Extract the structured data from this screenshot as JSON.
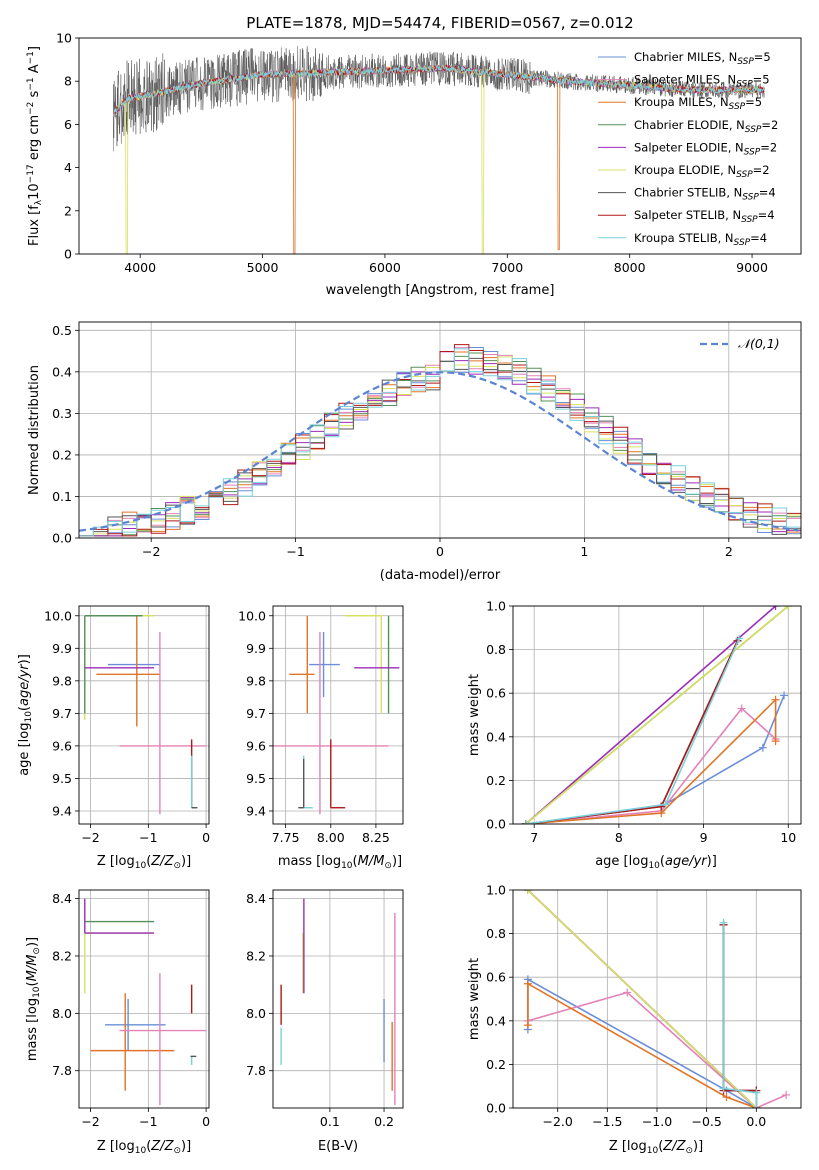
{
  "figure": {
    "title": "PLATE=1878, MJD=54474, FIBERID=0567, z=0.012"
  },
  "series_styles": [
    {
      "name": "Chabrier MILES, N<sub>SSP</sub>=5",
      "plain": "Chabrier MILES, N_SSP=5",
      "color": "#6a8fd8"
    },
    {
      "name": "Salpeter MILES, N_SSP=5",
      "color": "#e482b8"
    },
    {
      "name": "Kroupa MILES, N_SSP=5",
      "color": "#e07428"
    },
    {
      "name": "Chabrier ELODIE, N_SSP=2",
      "color": "#55905a"
    },
    {
      "name": "Salpeter ELODIE, N_SSP=2",
      "color": "#9b2db8"
    },
    {
      "name": "Kroupa ELODIE, N_SSP=2",
      "color": "#d8e060"
    },
    {
      "name": "Chabrier STELIB, N_SSP=4",
      "color": "#555555"
    },
    {
      "name": "Salpeter STELIB, N_SSP=4",
      "color": "#b01818"
    },
    {
      "name": "Kroupa STELIB, N_SSP=4",
      "color": "#78d0dc"
    }
  ],
  "chart_data": [
    {
      "id": "spectrum",
      "type": "line",
      "title": "PLATE=1878, MJD=54474, FIBERID=0567, z=0.012",
      "xlabel": "wavelength [Angstrom, rest frame]",
      "ylabel": "Flux [f_λ 10^-17 erg cm^-2 s^-1 A^-1]",
      "xlim": [
        3500,
        9400
      ],
      "ylim": [
        0,
        10
      ],
      "xticks": [
        4000,
        5000,
        6000,
        7000,
        8000,
        9000
      ],
      "yticks": [
        0,
        2,
        4,
        6,
        8,
        10
      ],
      "legend": "top-right",
      "grid": false,
      "data_envelope": {
        "x_range": [
          3780,
          9100
        ],
        "approx_level": [
          [
            3780,
            6.5
          ],
          [
            3900,
            7.2
          ],
          [
            4100,
            7.4
          ],
          [
            4500,
            7.9
          ],
          [
            5000,
            8.3
          ],
          [
            5500,
            8.4
          ],
          [
            6000,
            8.5
          ],
          [
            6500,
            8.6
          ],
          [
            7000,
            8.3
          ],
          [
            7500,
            8.0
          ],
          [
            8000,
            7.8
          ],
          [
            8500,
            7.6
          ],
          [
            9100,
            7.6
          ]
        ],
        "dips": [
          [
            3890,
            0.0
          ],
          [
            5260,
            0.0
          ],
          [
            6800,
            0.0
          ],
          [
            7420,
            0.2
          ]
        ]
      }
    },
    {
      "id": "residuals",
      "type": "histogram",
      "xlabel": "(data-model)/error",
      "ylabel": "Normed distribution",
      "xlim": [
        -2.5,
        2.5
      ],
      "ylim": [
        0,
        0.52
      ],
      "xticks": [
        -2,
        -1,
        0,
        1,
        2
      ],
      "yticks": [
        0.0,
        0.1,
        0.2,
        0.3,
        0.4,
        0.5
      ],
      "grid": true,
      "legend": "top-right",
      "reference_curve": {
        "label": "𝒩(0,1)",
        "mean": 0,
        "sigma": 1,
        "color": "#5b84d2"
      },
      "bin_edges_start": -2.5,
      "bin_width": 0.1,
      "bins": 50
    },
    {
      "id": "age_vs_Z",
      "type": "errorbar",
      "xlabel": "Z [log10(Z/Z⊙)]",
      "ylabel": "age [log10(age/yr)]",
      "xlim": [
        -2.2,
        0.05
      ],
      "ylim": [
        9.36,
        10.03
      ],
      "xticks": [
        -2,
        -1,
        0
      ],
      "yticks": [
        9.4,
        9.5,
        9.6,
        9.7,
        9.8,
        9.9,
        10.0
      ],
      "grid": true,
      "points": [
        {
          "series": 0,
          "x": -1.1,
          "xerr": [
            0.6,
            0.3
          ],
          "y": 9.85,
          "yerr": [
            0.0,
            0.0
          ]
        },
        {
          "series": 2,
          "x": -1.2,
          "xerr": [
            0.7,
            0.4
          ],
          "y": 9.82,
          "yerr": [
            0.16,
            0.18
          ]
        },
        {
          "series": 1,
          "x": -0.8,
          "xerr": [
            0.7,
            0.8
          ],
          "y": 9.6,
          "yerr": [
            0.21,
            0.35
          ]
        },
        {
          "series": 5,
          "x": -2.1,
          "xerr": [
            0.0,
            1.2
          ],
          "y": 10.0,
          "yerr": [
            0.32,
            0.0
          ]
        },
        {
          "series": 3,
          "x": -2.1,
          "xerr": [
            0.0,
            1.0
          ],
          "y": 10.0,
          "yerr": [
            0.3,
            0.0
          ]
        },
        {
          "series": 4,
          "x": -2.1,
          "xerr": [
            0.0,
            1.2
          ],
          "y": 9.84,
          "yerr": [
            0.0,
            0.0
          ]
        },
        {
          "series": 7,
          "x": -0.25,
          "xerr": [
            0.0,
            0.0
          ],
          "y": 9.41,
          "yerr": [
            0.0,
            0.21
          ]
        },
        {
          "series": 8,
          "x": -0.25,
          "xerr": [
            0.0,
            0.05
          ],
          "y": 9.41,
          "yerr": [
            0.0,
            0.16
          ]
        },
        {
          "series": 6,
          "x": -0.2,
          "xerr": [
            0.05,
            0.05
          ],
          "y": 9.41,
          "yerr": [
            0.0,
            0.0
          ]
        }
      ]
    },
    {
      "id": "age_vs_mass",
      "type": "errorbar",
      "xlabel": "mass [log10(M/M⊙)]",
      "ylabel": "",
      "xlim": [
        7.68,
        8.4
      ],
      "ylim": [
        9.36,
        10.03
      ],
      "xticks": [
        7.75,
        8.0,
        8.25
      ],
      "yticks": [
        9.4,
        9.5,
        9.6,
        9.7,
        9.8,
        9.9,
        10.0
      ],
      "grid": true,
      "points": [
        {
          "series": 0,
          "x": 7.96,
          "xerr": [
            0.08,
            0.09
          ],
          "y": 9.85,
          "yerr": [
            0.1,
            0.1
          ]
        },
        {
          "series": 2,
          "x": 7.87,
          "xerr": [
            0.1,
            0.04
          ],
          "y": 9.82,
          "yerr": [
            0.12,
            0.18
          ]
        },
        {
          "series": 1,
          "x": 7.94,
          "xerr": [
            0.34,
            0.38
          ],
          "y": 9.6,
          "yerr": [
            0.21,
            0.35
          ]
        },
        {
          "series": 5,
          "x": 8.28,
          "xerr": [
            0.2,
            0.0
          ],
          "y": 10.0,
          "yerr": [
            0.3,
            0.0
          ]
        },
        {
          "series": 3,
          "x": 8.32,
          "xerr": [
            0.0,
            0.0
          ],
          "y": 10.0,
          "yerr": [
            0.3,
            0.0
          ]
        },
        {
          "series": 4,
          "x": 8.28,
          "xerr": [
            0.15,
            0.1
          ],
          "y": 9.84,
          "yerr": [
            0.0,
            0.0
          ]
        },
        {
          "series": 7,
          "x": 8.0,
          "xerr": [
            0.0,
            0.08
          ],
          "y": 9.41,
          "yerr": [
            0.0,
            0.21
          ]
        },
        {
          "series": 8,
          "x": 7.85,
          "xerr": [
            0.02,
            0.05
          ],
          "y": 9.41,
          "yerr": [
            0.0,
            0.16
          ]
        },
        {
          "series": 6,
          "x": 7.85,
          "xerr": [
            0.03,
            0.0
          ],
          "y": 9.41,
          "yerr": [
            0.0,
            0.15
          ]
        }
      ]
    },
    {
      "id": "mass_weight_vs_age",
      "type": "line",
      "xlabel": "age [log10(age/yr)]",
      "ylabel": "mass weight",
      "xlim": [
        6.75,
        10.15
      ],
      "ylim": [
        0,
        1
      ],
      "xticks": [
        7,
        8,
        9,
        10
      ],
      "yticks": [
        0.0,
        0.2,
        0.4,
        0.6,
        0.8,
        1.0
      ],
      "grid": true,
      "series": [
        {
          "series": 0,
          "x": [
            6.9,
            8.5,
            9.7,
            9.95
          ],
          "y": [
            0.0,
            0.08,
            0.35,
            0.59
          ]
        },
        {
          "series": 1,
          "x": [
            6.9,
            8.5,
            9.45,
            9.85
          ],
          "y": [
            0.0,
            0.06,
            0.53,
            0.39
          ]
        },
        {
          "series": 2,
          "x": [
            6.9,
            8.5,
            9.85,
            9.85
          ],
          "y": [
            0.0,
            0.05,
            0.57,
            0.38
          ]
        },
        {
          "series": 3,
          "x": [
            6.9,
            10.0
          ],
          "y": [
            0.0,
            1.0
          ]
        },
        {
          "series": 4,
          "x": [
            6.9,
            9.85
          ],
          "y": [
            0.0,
            1.0
          ]
        },
        {
          "series": 5,
          "x": [
            6.9,
            10.0
          ],
          "y": [
            0.0,
            1.0
          ]
        },
        {
          "series": 6,
          "x": [
            6.9,
            8.5,
            9.4
          ],
          "y": [
            0.0,
            0.08,
            0.84
          ]
        },
        {
          "series": 7,
          "x": [
            6.9,
            8.5,
            9.4
          ],
          "y": [
            0.0,
            0.08,
            0.84
          ]
        },
        {
          "series": 8,
          "x": [
            6.9,
            8.55,
            9.42
          ],
          "y": [
            0.0,
            0.09,
            0.85
          ]
        }
      ]
    },
    {
      "id": "mass_vs_Z",
      "type": "errorbar",
      "xlabel": "Z [log10(Z/Z⊙)]",
      "ylabel": "mass [log10(M/M⊙)]",
      "xlim": [
        -2.2,
        0.05
      ],
      "ylim": [
        7.67,
        8.43
      ],
      "xticks": [
        -2,
        -1,
        0
      ],
      "yticks": [
        7.8,
        8.0,
        8.2,
        8.4
      ],
      "grid": true,
      "points": [
        {
          "series": 0,
          "x": -1.35,
          "xerr": [
            0.4,
            0.65
          ],
          "y": 7.96,
          "yerr": [
            0.09,
            0.09
          ]
        },
        {
          "series": 2,
          "x": -1.4,
          "xerr": [
            0.6,
            0.85
          ],
          "y": 7.87,
          "yerr": [
            0.14,
            0.2
          ]
        },
        {
          "series": 1,
          "x": -0.8,
          "xerr": [
            0.7,
            0.8
          ],
          "y": 7.94,
          "yerr": [
            0.26,
            0.2
          ]
        },
        {
          "series": 5,
          "x": -2.1,
          "xerr": [
            0.0,
            1.2
          ],
          "y": 8.28,
          "yerr": [
            0.21,
            0.0
          ]
        },
        {
          "series": 3,
          "x": -2.1,
          "xerr": [
            0.0,
            1.2
          ],
          "y": 8.32,
          "yerr": [
            0.0,
            0.0
          ]
        },
        {
          "series": 4,
          "x": -2.1,
          "xerr": [
            0.0,
            1.2
          ],
          "y": 8.28,
          "yerr": [
            0.0,
            0.12
          ]
        },
        {
          "series": 7,
          "x": -0.25,
          "xerr": [
            0.0,
            0.0
          ],
          "y": 8.0,
          "yerr": [
            0.0,
            0.1
          ]
        },
        {
          "series": 8,
          "x": -0.25,
          "xerr": [
            0.0,
            0.0
          ],
          "y": 7.85,
          "yerr": [
            0.03,
            0.0
          ]
        },
        {
          "series": 6,
          "x": -0.22,
          "xerr": [
            0.05,
            0.05
          ],
          "y": 7.85,
          "yerr": [
            0.0,
            0.0
          ]
        }
      ]
    },
    {
      "id": "mass_vs_EBV",
      "type": "errorbar",
      "xlabel": "E(B-V)",
      "ylabel": "",
      "xlim": [
        -0.005,
        0.235
      ],
      "ylim": [
        7.67,
        8.43
      ],
      "xticks": [
        0.1,
        0.2
      ],
      "yticks": [
        7.8,
        8.0,
        8.2,
        8.4
      ],
      "grid": true,
      "points": [
        {
          "series": 0,
          "x": 0.2,
          "xerr": [
            0,
            0
          ],
          "y": 7.96,
          "yerr": [
            0.13,
            0.09
          ]
        },
        {
          "series": 2,
          "x": 0.215,
          "xerr": [
            0,
            0
          ],
          "y": 7.87,
          "yerr": [
            0.14,
            0.1
          ]
        },
        {
          "series": 1,
          "x": 0.22,
          "xerr": [
            0,
            0
          ],
          "y": 7.94,
          "yerr": [
            0.26,
            0.41
          ]
        },
        {
          "series": 5,
          "x": 0.05,
          "xerr": [
            0,
            0
          ],
          "y": 8.28,
          "yerr": [
            0.21,
            0.0
          ]
        },
        {
          "series": 3,
          "x": 0.05,
          "xerr": [
            0,
            0
          ],
          "y": 8.32,
          "yerr": [
            0.0,
            0.0
          ]
        },
        {
          "series": 4,
          "x": 0.052,
          "xerr": [
            0,
            0
          ],
          "y": 8.28,
          "yerr": [
            0.21,
            0.12
          ]
        },
        {
          "series": 7,
          "x": 0.01,
          "xerr": [
            0,
            0
          ],
          "y": 8.0,
          "yerr": [
            0.04,
            0.1
          ]
        },
        {
          "series": 8,
          "x": 0.01,
          "xerr": [
            0,
            0
          ],
          "y": 7.85,
          "yerr": [
            0.03,
            0.1
          ]
        },
        {
          "series": 6,
          "x": 0.01,
          "xerr": [
            0,
            0
          ],
          "y": 7.85,
          "yerr": [
            0.0,
            0.0
          ]
        }
      ]
    },
    {
      "id": "mass_weight_vs_Z",
      "type": "line",
      "xlabel": "Z [log10(Z/Z⊙)]",
      "ylabel": "mass weight",
      "xlim": [
        -2.45,
        0.45
      ],
      "ylim": [
        0,
        1
      ],
      "xticks": [
        -2.0,
        -1.5,
        -1.0,
        -0.5,
        0.0
      ],
      "yticks": [
        0.0,
        0.2,
        0.4,
        0.6,
        0.8,
        1.0
      ],
      "grid": true,
      "series": [
        {
          "series": 0,
          "x": [
            -2.3,
            -2.3,
            -0.3,
            0.0
          ],
          "y": [
            0.36,
            0.59,
            0.08,
            0.0
          ]
        },
        {
          "series": 1,
          "x": [
            -2.3,
            -1.3,
            0.0,
            0.3
          ],
          "y": [
            0.4,
            0.53,
            0.0,
            0.06
          ]
        },
        {
          "series": 2,
          "x": [
            -2.3,
            -2.3,
            -0.3,
            0.0
          ],
          "y": [
            0.38,
            0.57,
            0.05,
            0.0
          ]
        },
        {
          "series": 3,
          "x": [
            -2.3,
            0.0
          ],
          "y": [
            1.0,
            0.0
          ]
        },
        {
          "series": 4,
          "x": [
            -2.3,
            0.0
          ],
          "y": [
            1.0,
            0.0
          ]
        },
        {
          "series": 5,
          "x": [
            -2.3,
            0.0
          ],
          "y": [
            1.0,
            0.0
          ]
        },
        {
          "series": 6,
          "x": [
            -0.33,
            -0.33,
            0.0,
            0.0
          ],
          "y": [
            0.84,
            0.08,
            0.08,
            0.0
          ]
        },
        {
          "series": 7,
          "x": [
            -0.33,
            -0.33,
            0.0,
            0.0
          ],
          "y": [
            0.84,
            0.08,
            0.08,
            0.0
          ]
        },
        {
          "series": 8,
          "x": [
            -0.33,
            -0.33,
            0.0,
            0.0
          ],
          "y": [
            0.85,
            0.09,
            0.07,
            0.0
          ]
        }
      ]
    }
  ]
}
